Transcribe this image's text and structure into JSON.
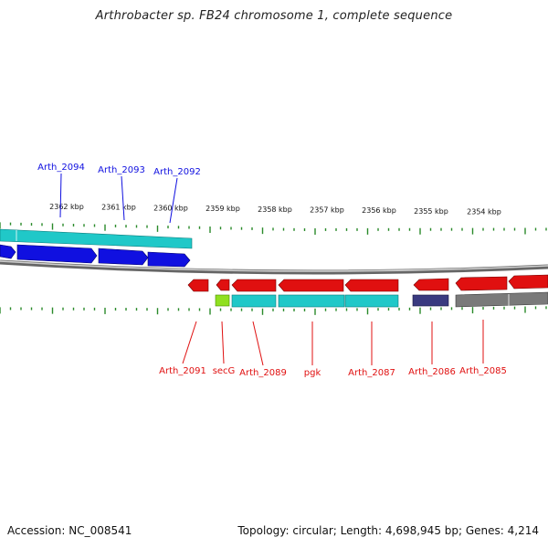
{
  "title": "Arthrobacter sp. FB24 chromosome 1, complete sequence",
  "footer": {
    "accession": "Accession: NC_008541",
    "summary": "Topology: circular; Length: 4,698,945 bp; Genes: 4,214"
  },
  "scale": {
    "labels": [
      "2362 kbp",
      "2361 kbp",
      "2360 kbp",
      "2359 kbp",
      "2358 kbp",
      "2357 kbp",
      "2356 kbp",
      "2355 kbp",
      "2354 kbp"
    ]
  },
  "colors": {
    "forward_gene": "#1010e0",
    "reverse_gene": "#e01010",
    "cds_cyan": "#20c8c8",
    "rna_green": "#90e020",
    "dark_purple": "#3a3a80",
    "grey": "#7a7a7a",
    "tick": "#2a8a2a",
    "backbone": "#888888"
  },
  "forward_labels": [
    "Arth_2094",
    "Arth_2093",
    "Arth_2092"
  ],
  "reverse_labels": [
    "Arth_2091",
    "secG",
    "Arth_2089",
    "pgk",
    "Arth_2087",
    "Arth_2086",
    "Arth_2085"
  ]
}
